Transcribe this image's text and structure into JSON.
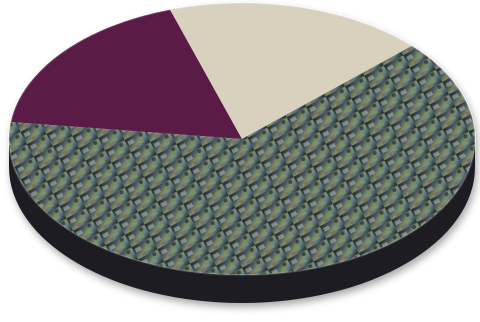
{
  "chart_data": {
    "type": "pie",
    "values": [
      18,
      18,
      64
    ],
    "colors": [
      "#5a1e47",
      "#d7d1be",
      "#3c4a44"
    ]
  }
}
